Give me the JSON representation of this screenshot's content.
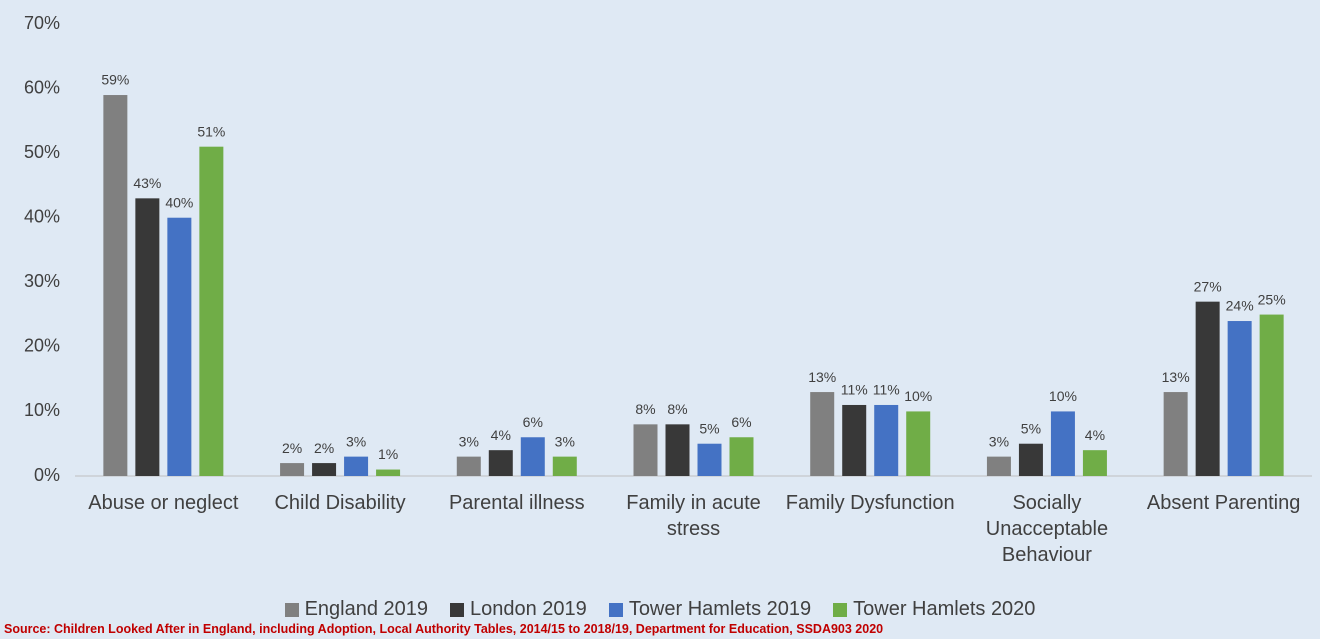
{
  "chart_data": {
    "type": "bar",
    "categories": [
      "Abuse or neglect",
      "Child Disability",
      "Parental illness",
      "Family in acute stress",
      "Family Dysfunction",
      "Socially Unacceptable Behaviour",
      "Absent Parenting"
    ],
    "series": [
      {
        "name": "England 2019",
        "color": "#808080",
        "values": [
          59,
          2,
          3,
          8,
          13,
          3,
          13
        ],
        "value_labels": [
          "59%",
          "2%",
          "3%",
          "8%",
          "13%",
          "3%",
          "13%"
        ]
      },
      {
        "name": "London 2019",
        "color": "#383838",
        "values": [
          43,
          2,
          4,
          8,
          11,
          5,
          27
        ],
        "value_labels": [
          "43%",
          "2%",
          "4%",
          "8%",
          "11%",
          "5%",
          "27%"
        ]
      },
      {
        "name": "Tower Hamlets 2019",
        "color": "#4472c4",
        "values": [
          40,
          3,
          6,
          5,
          11,
          10,
          24
        ],
        "value_labels": [
          "40%",
          "3%",
          "6%",
          "5%",
          "11%",
          "10%",
          "24%"
        ]
      },
      {
        "name": "Tower Hamlets 2020",
        "color": "#70ad47",
        "values": [
          51,
          1,
          3,
          6,
          10,
          4,
          25
        ],
        "value_labels": [
          "51%",
          "1%",
          "3%",
          "6%",
          "10%",
          "4%",
          "25%"
        ]
      }
    ],
    "ylim": [
      0,
      70
    ],
    "yticks": [
      {
        "value": 0,
        "label": "0%"
      },
      {
        "value": 10,
        "label": "10%"
      },
      {
        "value": 20,
        "label": "20%"
      },
      {
        "value": 30,
        "label": "30%"
      },
      {
        "value": 40,
        "label": "40%"
      },
      {
        "value": 50,
        "label": "50%"
      },
      {
        "value": 60,
        "label": "60%"
      },
      {
        "value": 70,
        "label": "70%"
      }
    ],
    "grid": false,
    "legend": "bottom",
    "source": "Source: Children Looked After in England, including Adoption, Local Authority Tables, 2014/15 to 2018/19, Department for Education, SSDA903 2020"
  }
}
